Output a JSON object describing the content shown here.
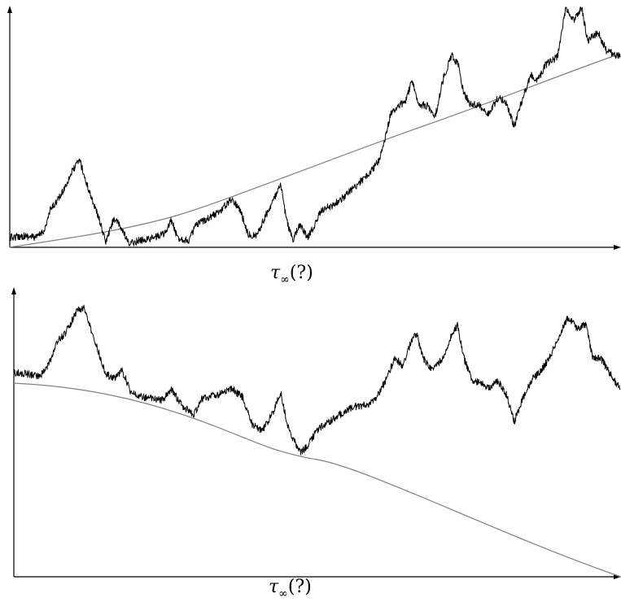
{
  "panels": [
    {
      "label": {
        "symbol": "τ",
        "subscript": "∞",
        "argument": "(?)"
      }
    },
    {
      "label": {
        "symbol": "τ",
        "subscript": "∞",
        "argument": "(?)"
      }
    }
  ]
}
